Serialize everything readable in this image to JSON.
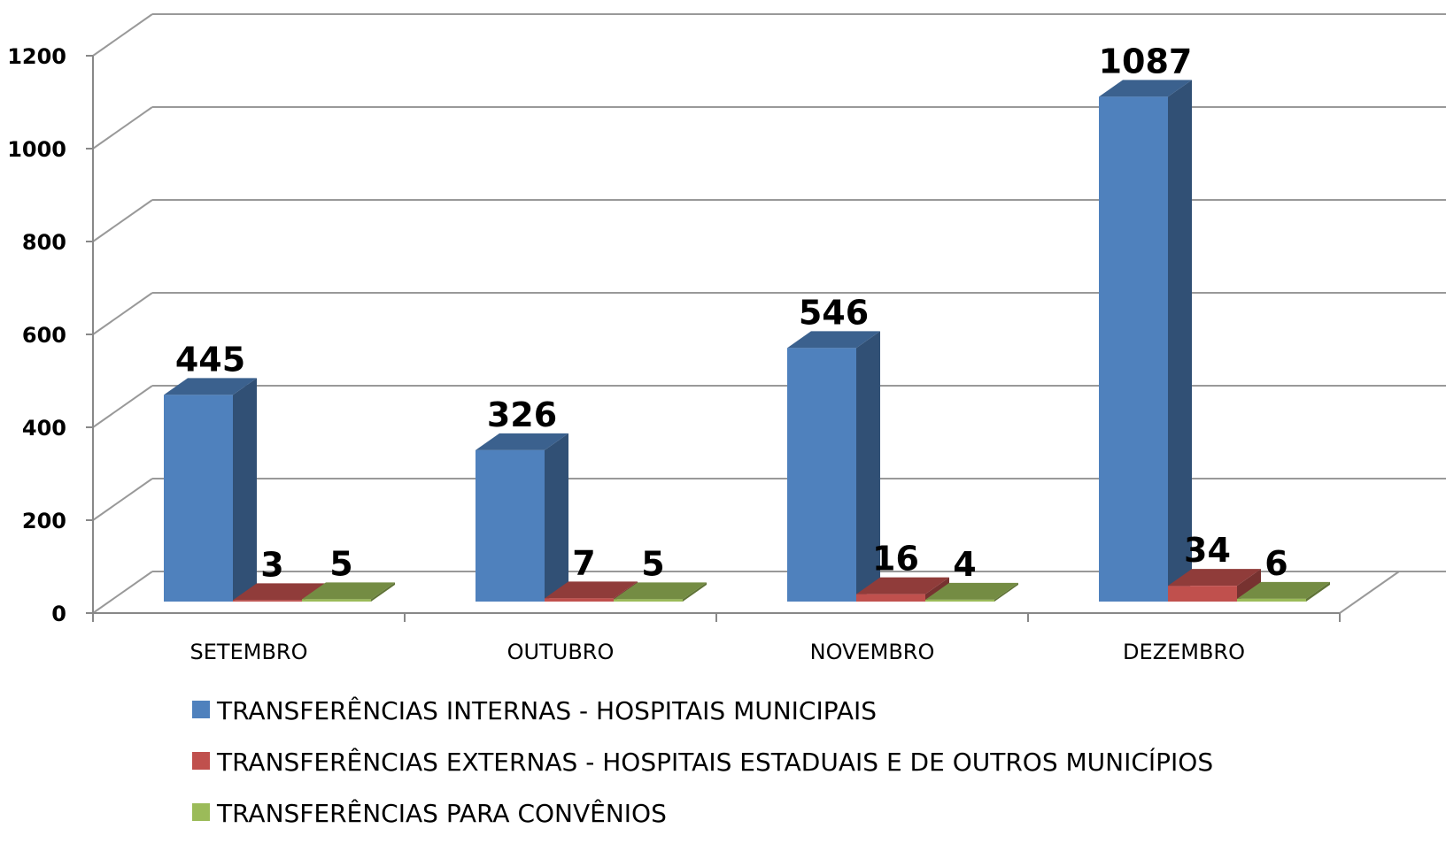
{
  "chart_data": {
    "type": "bar3d",
    "categories": [
      "SETEMBRO",
      "OUTUBRO",
      "NOVEMBRO",
      "DEZEMBRO"
    ],
    "series": [
      {
        "name": "TRANSFERÊNCIAS INTERNAS - HOSPITAIS MUNICIPAIS",
        "color": "#4f81bd",
        "values": [
          445,
          326,
          546,
          1087
        ]
      },
      {
        "name": "TRANSFERÊNCIAS EXTERNAS - HOSPITAIS ESTADUAIS E DE OUTROS MUNICÍPIOS",
        "color": "#c0504d",
        "values": [
          3,
          7,
          16,
          34
        ]
      },
      {
        "name": "TRANSFERÊNCIAS PARA CONVÊNIOS",
        "color": "#9bbb59",
        "values": [
          5,
          5,
          4,
          6
        ]
      }
    ],
    "ylim": [
      0,
      1200
    ],
    "yticks": [
      0,
      200,
      400,
      600,
      800,
      1000,
      1200
    ],
    "grid": true,
    "legend": "bottom"
  }
}
